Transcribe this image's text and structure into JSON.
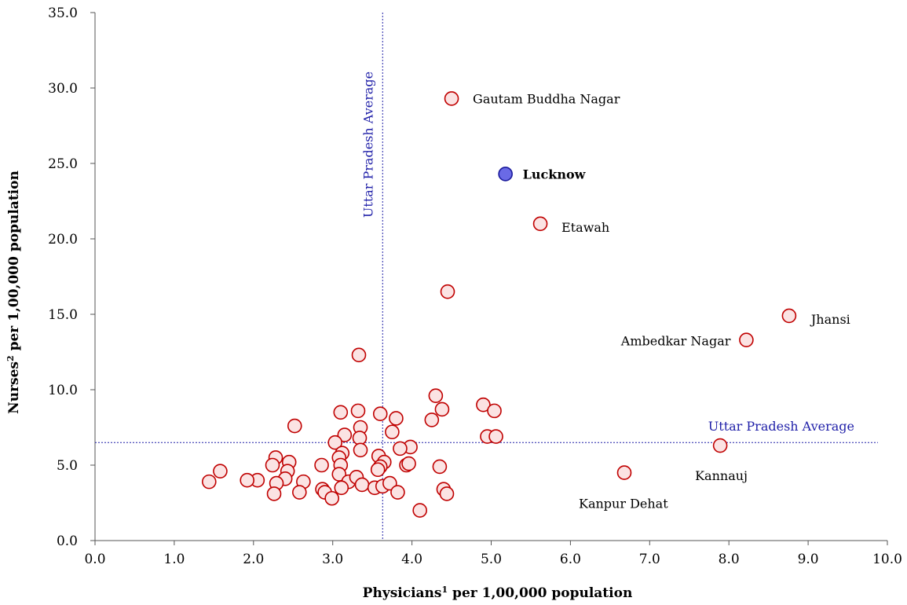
{
  "chart_data": {
    "type": "scatter",
    "xlabel_main": "Physicians",
    "xlabel_sup": "1",
    "xlabel_rest": " per 1,00,000 population",
    "ylabel_main": "Nurses",
    "ylabel_sup": "2",
    "ylabel_rest": " per 1,00,000 population",
    "xlim": [
      0,
      10
    ],
    "ylim": [
      0,
      35
    ],
    "x_ticks": [
      "0.0",
      "1.0",
      "2.0",
      "3.0",
      "4.0",
      "5.0",
      "6.0",
      "7.0",
      "8.0",
      "9.0",
      "10.0"
    ],
    "y_ticks": [
      "0.0",
      "5.0",
      "10.0",
      "15.0",
      "20.0",
      "25.0",
      "30.0",
      "35.0"
    ],
    "grid": false,
    "colors": {
      "point_fill": "#fbe3e3",
      "point_stroke": "#c00000",
      "highlight_fill": "#6a6ae6",
      "highlight_stroke": "#1a1a9c",
      "avg_line": "#1f1fa8"
    },
    "averages": {
      "x": 3.63,
      "y": 6.5,
      "x_label": "Uttar Pradesh Average",
      "y_label": "Uttar Pradesh Average"
    },
    "labeled_points": [
      {
        "name": "Gautam Buddha Nagar",
        "x": 4.5,
        "y": 29.3,
        "highlight": false
      },
      {
        "name": "Lucknow",
        "x": 5.18,
        "y": 24.3,
        "highlight": true
      },
      {
        "name": "Etawah",
        "x": 5.62,
        "y": 21.0,
        "highlight": false
      },
      {
        "name": "Jhansi",
        "x": 8.76,
        "y": 14.9,
        "highlight": false
      },
      {
        "name": "Ambedkar Nagar",
        "x": 8.22,
        "y": 13.3,
        "highlight": false
      },
      {
        "name": "Kannauj",
        "x": 7.89,
        "y": 6.3,
        "highlight": false
      },
      {
        "name": "Kanpur Dehat",
        "x": 6.68,
        "y": 4.5,
        "highlight": false
      }
    ],
    "points": [
      {
        "x": 4.45,
        "y": 16.5
      },
      {
        "x": 3.33,
        "y": 12.3
      },
      {
        "x": 4.3,
        "y": 9.6
      },
      {
        "x": 4.38,
        "y": 8.7
      },
      {
        "x": 4.9,
        "y": 9.0
      },
      {
        "x": 5.04,
        "y": 8.6
      },
      {
        "x": 4.25,
        "y": 8.0
      },
      {
        "x": 3.8,
        "y": 8.1
      },
      {
        "x": 3.6,
        "y": 8.4
      },
      {
        "x": 3.32,
        "y": 8.6
      },
      {
        "x": 3.1,
        "y": 8.5
      },
      {
        "x": 2.52,
        "y": 7.6
      },
      {
        "x": 3.35,
        "y": 7.5
      },
      {
        "x": 3.75,
        "y": 7.2
      },
      {
        "x": 3.15,
        "y": 7.0
      },
      {
        "x": 3.34,
        "y": 6.8
      },
      {
        "x": 3.03,
        "y": 6.5
      },
      {
        "x": 3.98,
        "y": 6.2
      },
      {
        "x": 3.85,
        "y": 6.1
      },
      {
        "x": 3.35,
        "y": 6.0
      },
      {
        "x": 3.12,
        "y": 5.8
      },
      {
        "x": 3.08,
        "y": 5.5
      },
      {
        "x": 3.58,
        "y": 5.6
      },
      {
        "x": 3.65,
        "y": 5.2
      },
      {
        "x": 3.6,
        "y": 4.9
      },
      {
        "x": 3.93,
        "y": 5.0
      },
      {
        "x": 3.96,
        "y": 5.1
      },
      {
        "x": 4.35,
        "y": 4.9
      },
      {
        "x": 3.1,
        "y": 5.0
      },
      {
        "x": 2.86,
        "y": 5.0
      },
      {
        "x": 2.28,
        "y": 5.5
      },
      {
        "x": 2.24,
        "y": 5.0
      },
      {
        "x": 2.45,
        "y": 5.2
      },
      {
        "x": 2.43,
        "y": 4.6
      },
      {
        "x": 2.4,
        "y": 4.1
      },
      {
        "x": 2.29,
        "y": 3.8
      },
      {
        "x": 2.05,
        "y": 4.0
      },
      {
        "x": 1.92,
        "y": 4.0
      },
      {
        "x": 1.58,
        "y": 4.6
      },
      {
        "x": 1.44,
        "y": 3.9
      },
      {
        "x": 2.63,
        "y": 3.9
      },
      {
        "x": 2.87,
        "y": 3.4
      },
      {
        "x": 2.9,
        "y": 3.2
      },
      {
        "x": 2.58,
        "y": 3.2
      },
      {
        "x": 2.26,
        "y": 3.1
      },
      {
        "x": 2.99,
        "y": 2.8
      },
      {
        "x": 3.08,
        "y": 4.4
      },
      {
        "x": 3.2,
        "y": 3.9
      },
      {
        "x": 3.3,
        "y": 4.2
      },
      {
        "x": 3.11,
        "y": 3.5
      },
      {
        "x": 3.37,
        "y": 3.7
      },
      {
        "x": 3.53,
        "y": 3.5
      },
      {
        "x": 3.63,
        "y": 3.6
      },
      {
        "x": 3.72,
        "y": 3.8
      },
      {
        "x": 3.82,
        "y": 3.2
      },
      {
        "x": 3.57,
        "y": 4.7
      },
      {
        "x": 4.4,
        "y": 3.4
      },
      {
        "x": 4.44,
        "y": 3.1
      },
      {
        "x": 4.1,
        "y": 2.0
      },
      {
        "x": 4.95,
        "y": 6.9
      },
      {
        "x": 5.06,
        "y": 6.9
      }
    ]
  }
}
